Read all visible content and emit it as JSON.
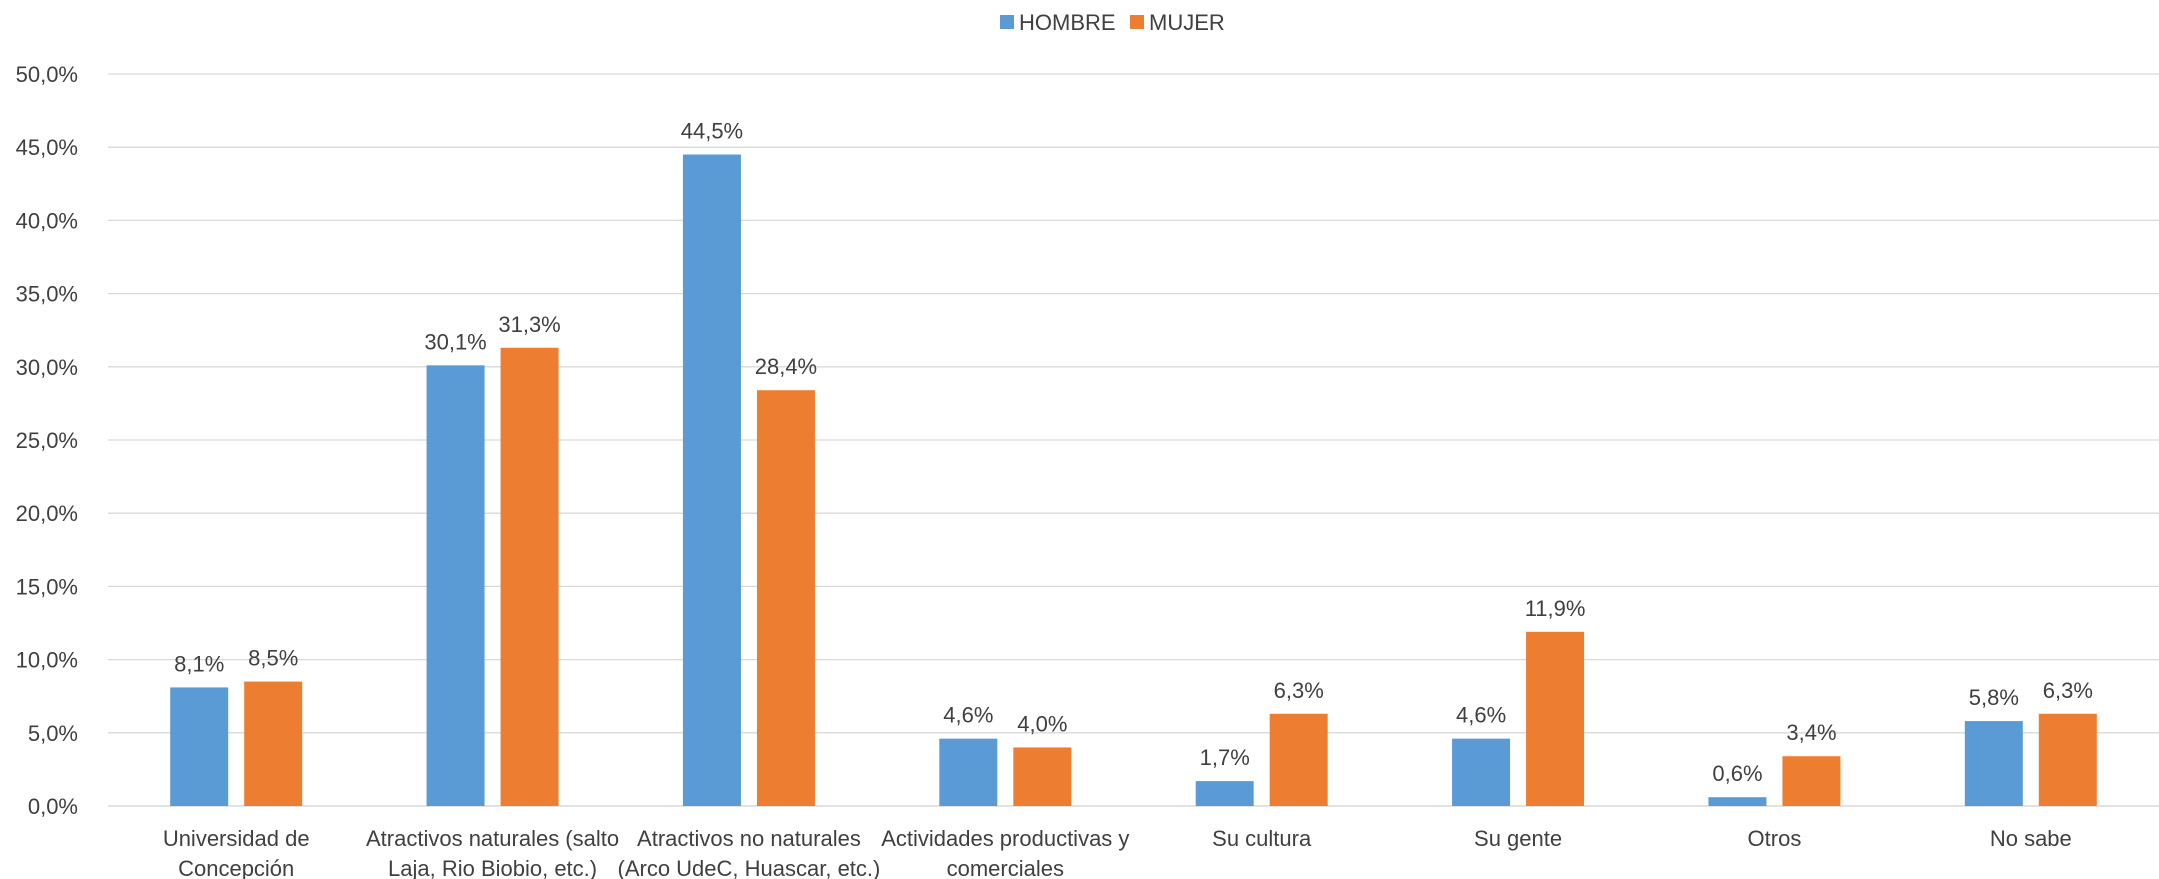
{
  "chart_data": {
    "type": "bar",
    "categories": [
      [
        "Universidad de",
        "Concepción"
      ],
      [
        "Atractivos naturales (salto",
        "Laja, Rio Biobio, etc.)"
      ],
      [
        "Atractivos no naturales",
        "(Arco UdeC, Huascar, etc.)"
      ],
      [
        "Actividades productivas y",
        "comerciales"
      ],
      [
        "Su cultura"
      ],
      [
        "Su gente"
      ],
      [
        "Otros"
      ],
      [
        "No sabe"
      ]
    ],
    "series": [
      {
        "name": "HOMBRE",
        "color": "#5B9BD5",
        "values": [
          8.1,
          30.1,
          44.5,
          4.6,
          1.7,
          4.6,
          0.6,
          5.8
        ],
        "labels": [
          "8,1%",
          "30,1%",
          "44,5%",
          "4,6%",
          "1,7%",
          "4,6%",
          "0,6%",
          "5,8%"
        ]
      },
      {
        "name": "MUJER",
        "color": "#ED7D31",
        "values": [
          8.5,
          31.3,
          28.4,
          4.0,
          6.3,
          11.9,
          3.4,
          6.3
        ],
        "labels": [
          "8,5%",
          "31,3%",
          "28,4%",
          "4,0%",
          "6,3%",
          "11,9%",
          "3,4%",
          "6,3%"
        ]
      }
    ],
    "ylim": [
      0,
      50
    ],
    "yticks": [
      0,
      5,
      10,
      15,
      20,
      25,
      30,
      35,
      40,
      45,
      50
    ],
    "ytick_labels": [
      "0,0%",
      "5,0%",
      "10,0%",
      "15,0%",
      "20,0%",
      "25,0%",
      "30,0%",
      "35,0%",
      "40,0%",
      "45,0%",
      "50,0%"
    ],
    "grid": true,
    "legend": "top-center",
    "title": "",
    "xlabel": "",
    "ylabel": ""
  }
}
